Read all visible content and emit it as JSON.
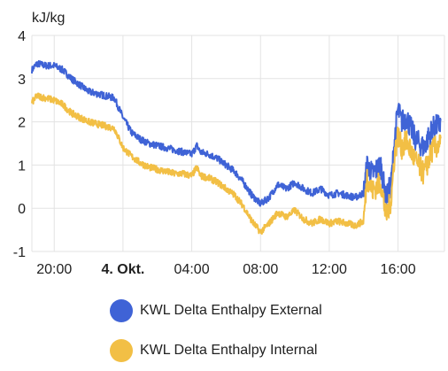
{
  "chart_data": {
    "type": "line",
    "y_unit": "kJ/kg",
    "ylim": [
      -1,
      4
    ],
    "y_ticks": [
      -1,
      0,
      1,
      2,
      3,
      4
    ],
    "x_range_hours": [
      18.7,
      37.0
    ],
    "x_ticks": [
      {
        "hour": 20,
        "label": "20:00",
        "bold": false
      },
      {
        "hour": 24,
        "label": "4. Okt.",
        "bold": true
      },
      {
        "hour": 28,
        "label": "04:00",
        "bold": false
      },
      {
        "hour": 32,
        "label": "08:00",
        "bold": false
      },
      {
        "hour": 36,
        "label": "12:00",
        "bold": false
      },
      {
        "hour": 40,
        "label": "16:00",
        "bold": false
      }
    ],
    "grid": true,
    "legend_position": "bottom",
    "series": [
      {
        "name": "KWL Delta Enthalpy External",
        "color": "#3f63d6",
        "x": [
          18.7,
          19.0,
          19.5,
          20.0,
          20.5,
          21.0,
          21.5,
          22.0,
          22.5,
          23.0,
          23.5,
          24.0,
          24.5,
          25.0,
          25.5,
          26.0,
          26.5,
          27.0,
          27.5,
          28.0,
          28.3,
          28.5,
          29.0,
          29.5,
          30.0,
          30.5,
          31.0,
          31.5,
          32.0,
          32.5,
          33.0,
          33.5,
          34.0,
          34.5,
          35.0,
          35.5,
          36.0,
          36.5,
          37.0,
          37.5,
          38.0,
          38.2,
          38.5,
          39.0,
          39.3,
          39.6,
          39.8,
          40.0,
          40.2,
          40.5,
          41.0,
          41.5,
          42.0,
          42.5
        ],
        "y": [
          3.2,
          3.35,
          3.3,
          3.3,
          3.2,
          3.0,
          2.85,
          2.7,
          2.65,
          2.6,
          2.55,
          2.1,
          1.75,
          1.6,
          1.5,
          1.45,
          1.4,
          1.35,
          1.3,
          1.25,
          1.45,
          1.3,
          1.25,
          1.15,
          1.0,
          0.85,
          0.6,
          0.3,
          0.1,
          0.25,
          0.55,
          0.45,
          0.6,
          0.45,
          0.35,
          0.45,
          0.3,
          0.35,
          0.3,
          0.25,
          0.35,
          1.0,
          0.8,
          1.0,
          0.2,
          0.6,
          1.6,
          2.3,
          2.0,
          2.1,
          1.6,
          1.4,
          1.85,
          1.95
        ]
      },
      {
        "name": "KWL Delta Enthalpy Internal",
        "color": "#f2bf45",
        "x": [
          18.7,
          19.0,
          19.5,
          20.0,
          20.5,
          21.0,
          21.5,
          22.0,
          22.5,
          23.0,
          23.5,
          24.0,
          24.5,
          25.0,
          25.5,
          26.0,
          26.5,
          27.0,
          27.5,
          28.0,
          28.3,
          28.5,
          29.0,
          29.5,
          30.0,
          30.5,
          31.0,
          31.5,
          32.0,
          32.5,
          33.0,
          33.5,
          34.0,
          34.5,
          35.0,
          35.5,
          36.0,
          36.5,
          37.0,
          37.5,
          38.0,
          38.2,
          38.5,
          39.0,
          39.3,
          39.6,
          39.8,
          40.0,
          40.2,
          40.5,
          41.0,
          41.5,
          42.0,
          42.5
        ],
        "y": [
          2.45,
          2.6,
          2.55,
          2.5,
          2.4,
          2.2,
          2.1,
          2.0,
          1.95,
          1.9,
          1.85,
          1.4,
          1.2,
          1.05,
          0.95,
          0.9,
          0.85,
          0.8,
          0.8,
          0.75,
          0.95,
          0.75,
          0.7,
          0.6,
          0.45,
          0.3,
          0.05,
          -0.3,
          -0.55,
          -0.35,
          -0.1,
          -0.2,
          -0.05,
          -0.25,
          -0.35,
          -0.25,
          -0.35,
          -0.3,
          -0.35,
          -0.4,
          -0.3,
          0.75,
          0.4,
          0.6,
          -0.2,
          0.2,
          1.25,
          1.7,
          1.4,
          1.55,
          1.1,
          0.8,
          1.35,
          1.5
        ]
      }
    ]
  }
}
